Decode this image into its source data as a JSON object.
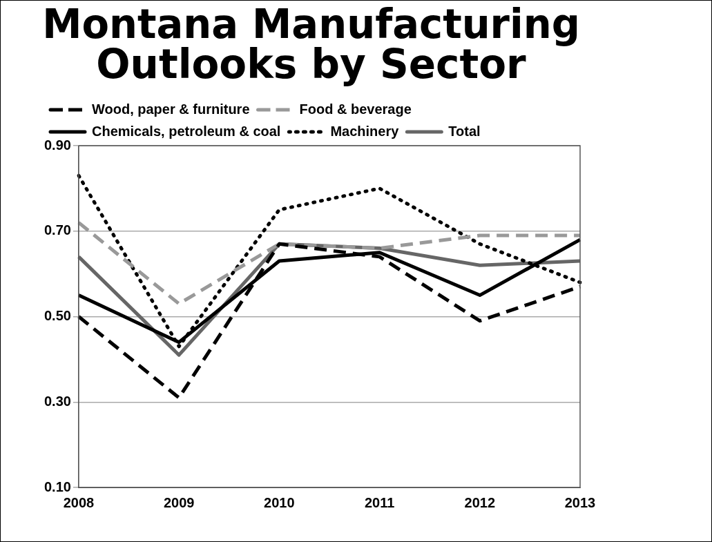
{
  "chart_data": {
    "type": "line",
    "title": [
      "Montana Manufacturing",
      "Outlooks by Sector"
    ],
    "categories": [
      "2008",
      "2009",
      "2010",
      "2011",
      "2012",
      "2013"
    ],
    "series": [
      {
        "name": "Wood, paper & furniture",
        "color": "#000000",
        "line_style": "dashed",
        "values": [
          0.5,
          0.31,
          0.67,
          0.64,
          0.49,
          0.57
        ]
      },
      {
        "name": "Food & beverage",
        "color": "#999999",
        "line_style": "dashed",
        "values": [
          0.72,
          0.53,
          0.67,
          0.66,
          0.69,
          0.69
        ]
      },
      {
        "name": "Chemicals, petroleum & coal",
        "color": "#000000",
        "line_style": "solid",
        "values": [
          0.55,
          0.44,
          0.63,
          0.65,
          0.55,
          0.68
        ]
      },
      {
        "name": "Machinery",
        "color": "#000000",
        "line_style": "dotted",
        "values": [
          0.83,
          0.43,
          0.75,
          0.8,
          0.67,
          0.58
        ]
      },
      {
        "name": "Total",
        "color": "#666666",
        "line_style": "solid",
        "values": [
          0.64,
          0.41,
          0.67,
          0.66,
          0.62,
          0.63
        ]
      }
    ],
    "ylim": [
      0.1,
      0.9
    ],
    "yticks": [
      {
        "value": 0.1,
        "label": "0.10"
      },
      {
        "value": 0.3,
        "label": "0.30"
      },
      {
        "value": 0.5,
        "label": "0.50"
      },
      {
        "value": 0.7,
        "label": "0.70"
      },
      {
        "value": 0.9,
        "label": "0.90"
      }
    ],
    "grid": "y",
    "legend": "top",
    "marker": "none"
  }
}
